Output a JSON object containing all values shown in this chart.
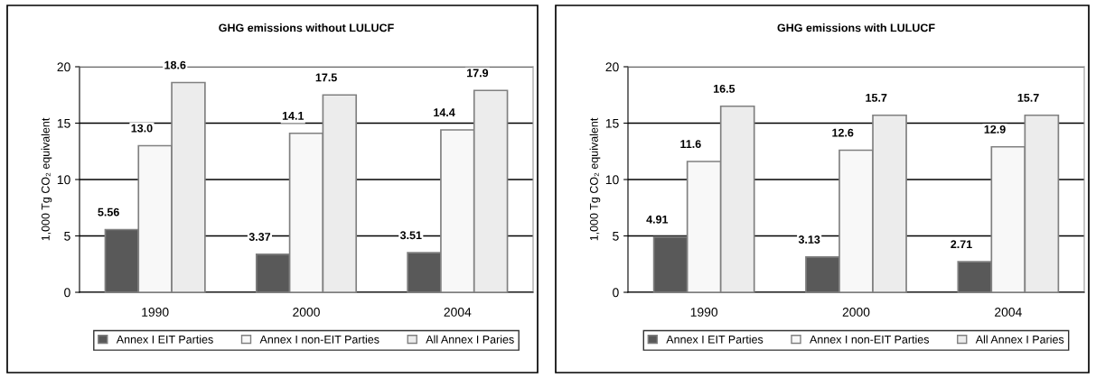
{
  "chart_data": [
    {
      "type": "bar",
      "title": "GHG emissions without LULUCF",
      "ylabel": "1,000 Tg CO₂ equivalent",
      "categories": [
        "1990",
        "2000",
        "2004"
      ],
      "series": [
        {
          "name": "Annex I EIT Parties",
          "color": "#595959",
          "values": [
            5.56,
            3.37,
            3.51
          ]
        },
        {
          "name": "Annex I non-EIT Parties",
          "color": "#f8f8f8",
          "values": [
            13.0,
            14.1,
            14.4
          ],
          "value_labels": [
            "13.0",
            "14.1",
            "14.4"
          ]
        },
        {
          "name": "All Annex I Paries",
          "color": "#ececec",
          "values": [
            18.6,
            17.5,
            17.9
          ]
        }
      ],
      "ylim": [
        0,
        20
      ],
      "yticks": [
        0,
        5,
        10,
        15,
        20
      ],
      "grid": "y",
      "legend": "bottom",
      "data_labels": true
    },
    {
      "type": "bar",
      "title": "GHG emissions with LULUCF",
      "ylabel": "1,000 Tg CO₂ equivalent",
      "categories": [
        "1990",
        "2000",
        "2004"
      ],
      "series": [
        {
          "name": "Annex I EIT Parties",
          "color": "#595959",
          "values": [
            4.91,
            3.13,
            2.71
          ]
        },
        {
          "name": "Annex I non-EIT Parties",
          "color": "#f8f8f8",
          "values": [
            11.6,
            12.6,
            12.9
          ]
        },
        {
          "name": "All Annex I Paries",
          "color": "#ececec",
          "values": [
            16.5,
            15.7,
            15.7
          ]
        }
      ],
      "ylim": [
        0,
        20
      ],
      "yticks": [
        0,
        5,
        10,
        15,
        20
      ],
      "grid": "y",
      "legend": "bottom",
      "data_labels": true
    }
  ]
}
